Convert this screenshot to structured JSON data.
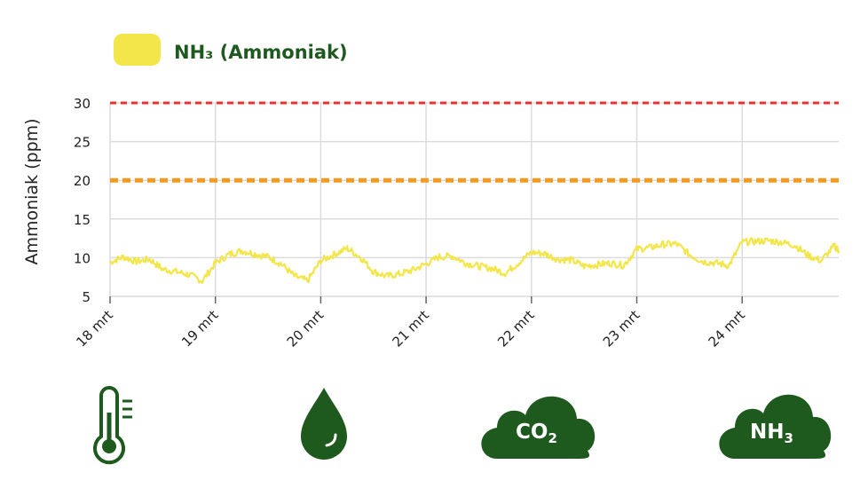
{
  "legend": {
    "color": "#f2e64a",
    "label": "NH₃ (Ammoniak)"
  },
  "chart_data": {
    "type": "line",
    "ylabel": "Ammoniak (ppm)",
    "ylim": [
      5,
      30
    ],
    "yticks": [
      5,
      10,
      15,
      20,
      25,
      30
    ],
    "xlim": [
      "2024-03-18 00:00",
      "2024-03-24 22:00"
    ],
    "x_tick_labels": [
      "18 mrt",
      "19 mrt",
      "20 mrt",
      "21 mrt",
      "22 mrt",
      "23 mrt",
      "24 mrt"
    ],
    "grid": true,
    "series": [
      {
        "color": "#f2e64a",
        "x": [
          "2024-03-18 00:00",
          "2024-03-18 03:00",
          "2024-03-18 06:00",
          "2024-03-18 09:00",
          "2024-03-18 12:00",
          "2024-03-18 15:00",
          "2024-03-18 18:00",
          "2024-03-18 21:00",
          "2024-03-19 00:00",
          "2024-03-19 03:00",
          "2024-03-19 06:00",
          "2024-03-19 09:00",
          "2024-03-19 12:00",
          "2024-03-19 15:00",
          "2024-03-19 18:00",
          "2024-03-19 21:00",
          "2024-03-20 00:00",
          "2024-03-20 03:00",
          "2024-03-20 06:00",
          "2024-03-20 09:00",
          "2024-03-20 12:00",
          "2024-03-20 15:00",
          "2024-03-20 18:00",
          "2024-03-20 21:00",
          "2024-03-21 00:00",
          "2024-03-21 03:00",
          "2024-03-21 06:00",
          "2024-03-21 09:00",
          "2024-03-21 12:00",
          "2024-03-21 15:00",
          "2024-03-21 18:00",
          "2024-03-21 21:00",
          "2024-03-22 00:00",
          "2024-03-22 03:00",
          "2024-03-22 06:00",
          "2024-03-22 09:00",
          "2024-03-22 12:00",
          "2024-03-22 15:00",
          "2024-03-22 18:00",
          "2024-03-22 21:00",
          "2024-03-23 00:00",
          "2024-03-23 03:00",
          "2024-03-23 06:00",
          "2024-03-23 09:00",
          "2024-03-23 12:00",
          "2024-03-23 15:00",
          "2024-03-23 18:00",
          "2024-03-23 21:00",
          "2024-03-24 00:00",
          "2024-03-24 03:00",
          "2024-03-24 06:00",
          "2024-03-24 09:00",
          "2024-03-24 12:00",
          "2024-03-24 15:00",
          "2024-03-24 18:00",
          "2024-03-24 21:00",
          "2024-03-24 22:00"
        ],
        "values": [
          9.4,
          10.1,
          9.5,
          9.8,
          8.5,
          8.2,
          7.8,
          7.0,
          9.3,
          10.4,
          10.9,
          10.5,
          10.1,
          9.2,
          7.6,
          7.0,
          9.6,
          10.4,
          11.2,
          10.1,
          8.2,
          7.6,
          7.9,
          8.4,
          9.2,
          10.1,
          10.2,
          9.3,
          8.9,
          8.6,
          8.0,
          9.3,
          10.7,
          10.5,
          9.8,
          9.7,
          8.9,
          9.1,
          9.3,
          9.0,
          11.1,
          11.3,
          11.7,
          11.8,
          10.4,
          9.5,
          9.3,
          9.0,
          12.0,
          12.1,
          12.2,
          12.0,
          11.6,
          10.3,
          9.6,
          11.5,
          10.9
        ]
      }
    ],
    "reference_lines": [
      {
        "y": 30,
        "color": "#e53232"
      },
      {
        "y": 20,
        "color": "#f39a21"
      }
    ]
  },
  "icons": [
    {
      "name": "thermometer-icon"
    },
    {
      "name": "humidity-drop-icon"
    },
    {
      "name": "co2-cloud-icon",
      "main": "CO",
      "sub": "2"
    },
    {
      "name": "nh3-cloud-icon",
      "main": "NH",
      "sub": "3"
    }
  ],
  "colors": {
    "icon_green": "#1e5a1e",
    "grid": "#dcdcdc"
  }
}
